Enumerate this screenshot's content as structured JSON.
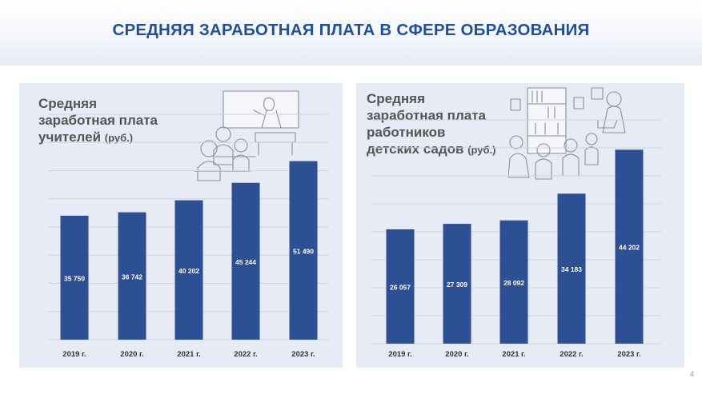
{
  "header": {
    "title": "СРЕДНЯЯ ЗАРАБОТНАЯ ПЛАТА В СФЕРЕ ОБРАЗОВАНИЯ"
  },
  "panels": [
    {
      "title_lines": [
        "Средняя",
        "заработная плата"
      ],
      "title_last": "учителей",
      "unit": "(руб.)"
    },
    {
      "title_lines": [
        "Средняя",
        "заработная плата",
        "работников"
      ],
      "title_last": "детских садов",
      "unit": "(руб.)"
    }
  ],
  "page_number": "4",
  "colors": {
    "bar": "#2d4f93",
    "panel": "#e7ebf6",
    "title": "#1f4fa0",
    "grid": "#cdd3e3"
  },
  "chart_data": [
    {
      "type": "bar",
      "title": "Средняя заработная плата учителей (руб.)",
      "xlabel": "",
      "ylabel": "",
      "categories": [
        "2019 г.",
        "2020 г.",
        "2021 г.",
        "2022 г.",
        "2023 г."
      ],
      "values": [
        35750,
        36742,
        40202,
        45244,
        51490
      ],
      "value_labels": [
        "35 750",
        "36 742",
        "40 202",
        "45 244",
        "51 490"
      ],
      "ylim": [
        0,
        65000
      ],
      "grid": true
    },
    {
      "type": "bar",
      "title": "Средняя заработная плата работников детских садов (руб.)",
      "xlabel": "",
      "ylabel": "",
      "categories": [
        "2019 г.",
        "2020 г.",
        "2021 г.",
        "2022 г.",
        "2023 г."
      ],
      "values": [
        26057,
        27309,
        28092,
        34183,
        44202
      ],
      "value_labels": [
        "26 057",
        "27 309",
        "28 092",
        "34 183",
        "44 202"
      ],
      "ylim": [
        0,
        51000
      ],
      "grid": true
    }
  ]
}
